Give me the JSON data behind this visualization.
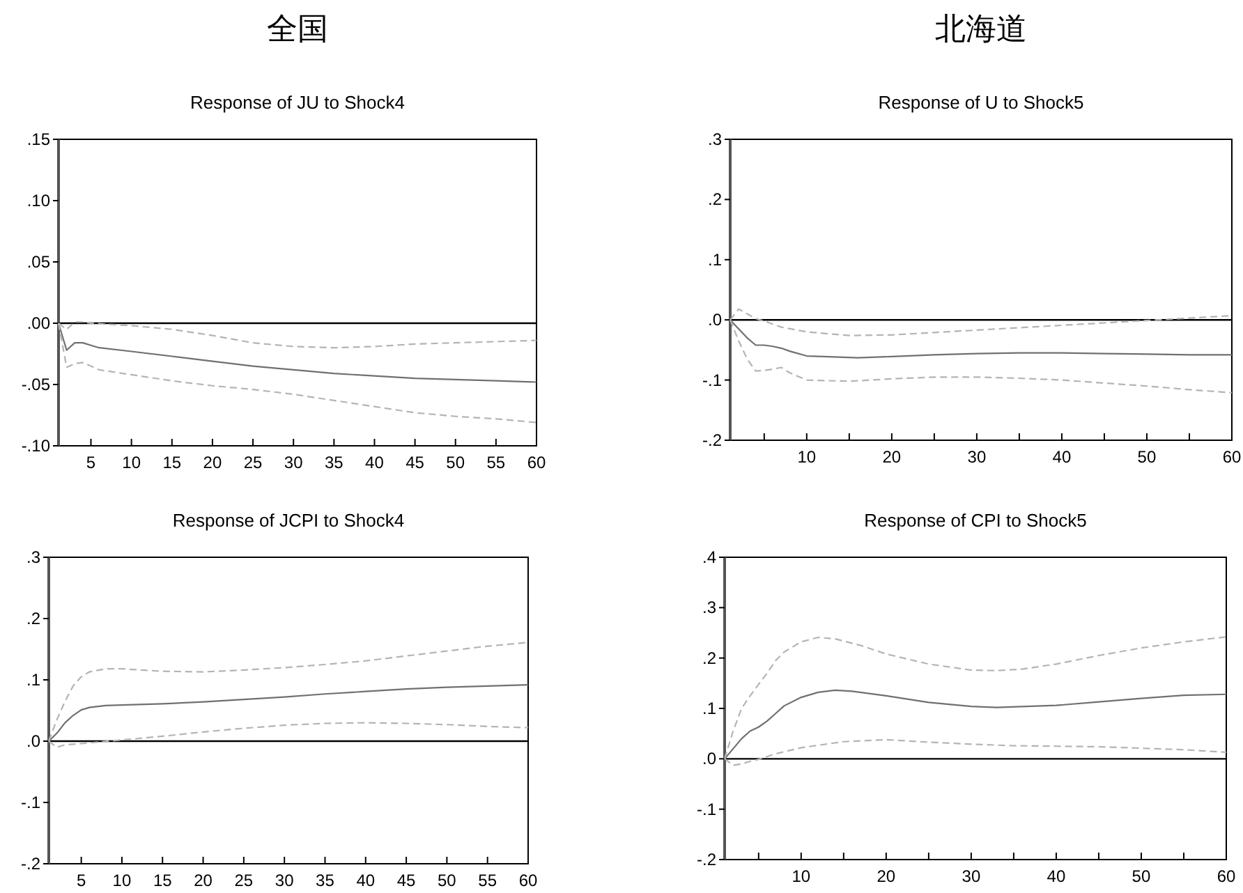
{
  "chart_data": [
    {
      "type": "line",
      "title": "全国",
      "subtitle": "Response of JU to Shock4",
      "xlim": [
        1,
        60
      ],
      "ylim": [
        -0.1,
        0.15
      ],
      "xticks": [
        5,
        10,
        15,
        20,
        25,
        30,
        35,
        40,
        45,
        50,
        55,
        60
      ],
      "yticks": [
        {
          "value": -0.1,
          "label": "-.10"
        },
        {
          "value": -0.05,
          "label": "-.05"
        },
        {
          "value": 0,
          "label": ".00"
        },
        {
          "value": 0.05,
          "label": ".05"
        },
        {
          "value": 0.1,
          "label": ".10"
        },
        {
          "value": 0.15,
          "label": ".15"
        }
      ],
      "ref_lines": [
        {
          "axis": "y",
          "value": 0,
          "color": "#000000"
        }
      ],
      "series": [
        {
          "color": "#707070",
          "line_style": "solid",
          "x": [
            1,
            2,
            3,
            4,
            5,
            6,
            10,
            15,
            20,
            25,
            30,
            35,
            40,
            45,
            50,
            55,
            60
          ],
          "values": [
            0,
            -0.022,
            -0.016,
            -0.016,
            -0.018,
            -0.02,
            -0.023,
            -0.027,
            -0.031,
            -0.035,
            -0.038,
            -0.041,
            -0.043,
            -0.045,
            -0.046,
            -0.047,
            -0.048
          ]
        },
        {
          "color": "#b4b4b4",
          "line_style": "dashed",
          "x": [
            1,
            2,
            3,
            4,
            5,
            10,
            15,
            20,
            25,
            30,
            35,
            40,
            45,
            50,
            55,
            60
          ],
          "values": [
            0,
            -0.005,
            0.001,
            0.001,
            0,
            -0.002,
            -0.005,
            -0.01,
            -0.016,
            -0.019,
            -0.02,
            -0.019,
            -0.017,
            -0.016,
            -0.015,
            -0.014
          ]
        },
        {
          "color": "#b4b4b4",
          "line_style": "dashed",
          "x": [
            1,
            2,
            3,
            4,
            5,
            6,
            10,
            15,
            20,
            25,
            30,
            35,
            40,
            45,
            50,
            55,
            60
          ],
          "values": [
            0,
            -0.036,
            -0.033,
            -0.032,
            -0.035,
            -0.038,
            -0.042,
            -0.047,
            -0.051,
            -0.054,
            -0.058,
            -0.063,
            -0.068,
            -0.073,
            -0.076,
            -0.078,
            -0.081
          ]
        }
      ]
    },
    {
      "type": "line",
      "title": "北海道",
      "subtitle": "Response of U to Shock5",
      "xlim": [
        1,
        60
      ],
      "ylim": [
        -0.2,
        0.3
      ],
      "xticks": [
        {
          "value": 5,
          "label": null
        },
        10,
        {
          "value": 15,
          "label": null
        },
        20,
        {
          "value": 25,
          "label": null
        },
        30,
        {
          "value": 35,
          "label": null
        },
        40,
        {
          "value": 45,
          "label": null
        },
        50,
        {
          "value": 55,
          "label": null
        },
        60
      ],
      "yticks": [
        {
          "value": -0.2,
          "label": "-.2"
        },
        {
          "value": -0.1,
          "label": "-.1"
        },
        {
          "value": 0,
          "label": ".0"
        },
        {
          "value": 0.1,
          "label": ".1"
        },
        {
          "value": 0.2,
          "label": ".2"
        },
        {
          "value": 0.3,
          "label": ".3"
        }
      ],
      "ref_lines": [
        {
          "axis": "y",
          "value": 0,
          "color": "#000000"
        }
      ],
      "series": [
        {
          "color": "#707070",
          "line_style": "solid",
          "x": [
            1,
            2,
            3,
            4,
            5,
            6,
            7,
            8,
            10,
            12,
            16,
            20,
            25,
            30,
            35,
            40,
            45,
            50,
            55,
            60
          ],
          "values": [
            0,
            -0.015,
            -0.03,
            -0.042,
            -0.042,
            -0.044,
            -0.047,
            -0.052,
            -0.06,
            -0.061,
            -0.063,
            -0.061,
            -0.058,
            -0.056,
            -0.055,
            -0.055,
            -0.056,
            -0.057,
            -0.058,
            -0.058
          ]
        },
        {
          "color": "#b4b4b4",
          "line_style": "dashed",
          "x": [
            1,
            2,
            3,
            4,
            5,
            7,
            10,
            15,
            20,
            25,
            30,
            35,
            40,
            45,
            50,
            55,
            60
          ],
          "values": [
            0,
            0.018,
            0.01,
            0.002,
            -0.002,
            -0.012,
            -0.02,
            -0.026,
            -0.025,
            -0.021,
            -0.017,
            -0.013,
            -0.009,
            -0.005,
            -0.001,
            0.003,
            0.007
          ]
        },
        {
          "color": "#b4b4b4",
          "line_style": "dashed",
          "x": [
            1,
            2,
            3,
            4,
            5,
            6,
            7,
            8,
            10,
            15,
            20,
            25,
            30,
            35,
            40,
            45,
            50,
            55,
            60
          ],
          "values": [
            0,
            -0.035,
            -0.065,
            -0.085,
            -0.084,
            -0.082,
            -0.079,
            -0.088,
            -0.1,
            -0.102,
            -0.098,
            -0.095,
            -0.095,
            -0.097,
            -0.1,
            -0.105,
            -0.11,
            -0.116,
            -0.121
          ]
        }
      ]
    },
    {
      "type": "line",
      "title": "Response of JCPI to Shock4",
      "xlim": [
        1,
        60
      ],
      "ylim": [
        -0.2,
        0.3
      ],
      "xticks": [
        5,
        10,
        15,
        20,
        25,
        30,
        35,
        40,
        45,
        50,
        55,
        60
      ],
      "yticks": [
        {
          "value": -0.2,
          "label": "-.2"
        },
        {
          "value": -0.1,
          "label": "-.1"
        },
        {
          "value": 0,
          "label": ".0"
        },
        {
          "value": 0.1,
          "label": ".1"
        },
        {
          "value": 0.2,
          "label": ".2"
        },
        {
          "value": 0.3,
          "label": ".3"
        }
      ],
      "ref_lines": [
        {
          "axis": "y",
          "value": 0,
          "color": "#000000"
        }
      ],
      "series": [
        {
          "color": "#707070",
          "line_style": "solid",
          "x": [
            1,
            2,
            3,
            4,
            5,
            6,
            8,
            10,
            15,
            20,
            25,
            30,
            35,
            40,
            45,
            50,
            55,
            60
          ],
          "values": [
            0,
            0.013,
            0.03,
            0.042,
            0.051,
            0.055,
            0.058,
            0.059,
            0.061,
            0.064,
            0.068,
            0.072,
            0.077,
            0.081,
            0.085,
            0.088,
            0.09,
            0.092
          ]
        },
        {
          "color": "#b4b4b4",
          "line_style": "dashed",
          "x": [
            1,
            2,
            3,
            4,
            5,
            6,
            8,
            10,
            15,
            20,
            25,
            30,
            35,
            40,
            45,
            50,
            55,
            60
          ],
          "values": [
            0,
            0.035,
            0.065,
            0.09,
            0.105,
            0.113,
            0.118,
            0.118,
            0.114,
            0.113,
            0.116,
            0.12,
            0.125,
            0.131,
            0.139,
            0.147,
            0.155,
            0.161
          ]
        },
        {
          "color": "#b4b4b4",
          "line_style": "dashed",
          "x": [
            1,
            2,
            3,
            5,
            10,
            15,
            20,
            25,
            30,
            35,
            40,
            45,
            50,
            55,
            60
          ],
          "values": [
            0,
            -0.01,
            -0.006,
            -0.004,
            0.002,
            0.008,
            0.015,
            0.021,
            0.026,
            0.029,
            0.03,
            0.029,
            0.027,
            0.024,
            0.022
          ]
        }
      ]
    },
    {
      "type": "line",
      "title": "Response of CPI to Shock5",
      "xlim": [
        1,
        60
      ],
      "ylim": [
        -0.2,
        0.4
      ],
      "xticks": [
        {
          "value": 5,
          "label": null
        },
        10,
        {
          "value": 15,
          "label": null
        },
        20,
        {
          "value": 25,
          "label": null
        },
        30,
        {
          "value": 35,
          "label": null
        },
        40,
        {
          "value": 45,
          "label": null
        },
        50,
        {
          "value": 55,
          "label": null
        },
        60
      ],
      "yticks": [
        {
          "value": -0.2,
          "label": "-.2"
        },
        {
          "value": -0.1,
          "label": "-.1"
        },
        {
          "value": 0,
          "label": ".0"
        },
        {
          "value": 0.1,
          "label": ".1"
        },
        {
          "value": 0.2,
          "label": ".2"
        },
        {
          "value": 0.3,
          "label": ".3"
        },
        {
          "value": 0.4,
          "label": ".4"
        }
      ],
      "ref_lines": [
        {
          "axis": "y",
          "value": 0,
          "color": "#000000"
        }
      ],
      "series": [
        {
          "color": "#707070",
          "line_style": "solid",
          "x": [
            1,
            2,
            3,
            4,
            5,
            6,
            7,
            8,
            10,
            12,
            14,
            16,
            20,
            25,
            30,
            33,
            40,
            45,
            50,
            55,
            60
          ],
          "values": [
            0,
            0.02,
            0.04,
            0.055,
            0.063,
            0.075,
            0.09,
            0.105,
            0.122,
            0.132,
            0.136,
            0.134,
            0.125,
            0.112,
            0.104,
            0.102,
            0.106,
            0.113,
            0.12,
            0.126,
            0.128
          ]
        },
        {
          "color": "#b4b4b4",
          "line_style": "dashed",
          "x": [
            1,
            2,
            3,
            4,
            5,
            6,
            7,
            8,
            10,
            12,
            14,
            17,
            20,
            25,
            30,
            33,
            36,
            40,
            45,
            50,
            55,
            60
          ],
          "values": [
            0,
            0.055,
            0.1,
            0.125,
            0.148,
            0.17,
            0.195,
            0.212,
            0.232,
            0.241,
            0.238,
            0.225,
            0.208,
            0.188,
            0.176,
            0.175,
            0.178,
            0.188,
            0.205,
            0.22,
            0.232,
            0.242
          ]
        },
        {
          "color": "#b4b4b4",
          "line_style": "dashed",
          "x": [
            1,
            2,
            3,
            4,
            5,
            7,
            10,
            15,
            20,
            25,
            30,
            35,
            40,
            45,
            50,
            55,
            60
          ],
          "values": [
            0,
            -0.013,
            -0.01,
            -0.005,
            -0.001,
            0.01,
            0.022,
            0.034,
            0.038,
            0.033,
            0.029,
            0.026,
            0.025,
            0.024,
            0.021,
            0.018,
            0.013
          ]
        }
      ]
    }
  ]
}
